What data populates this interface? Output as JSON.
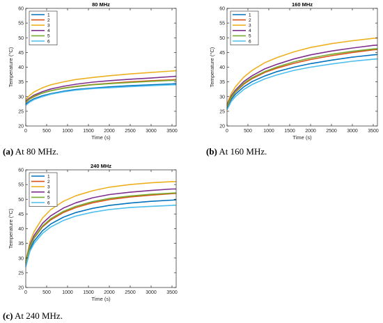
{
  "figure": {
    "captions": [
      {
        "label": "(a)",
        "text": " At 80 MHz."
      },
      {
        "label": "(b)",
        "text": " At 160 MHz."
      },
      {
        "label": "(c)",
        "text": " At 240 MHz."
      }
    ]
  },
  "colors": {
    "series": [
      "#0072BD",
      "#D95319",
      "#EDB120",
      "#7E2F8E",
      "#77AC30",
      "#4DBEEE"
    ],
    "axis": "#262626"
  },
  "chart_data": [
    {
      "type": "line",
      "title": "80 MHz",
      "xlabel": "Time (s)",
      "ylabel": "Temperature (°C)",
      "xlim": [
        0,
        3600
      ],
      "ylim": [
        20,
        60
      ],
      "xticks": [
        0,
        500,
        1000,
        1500,
        2000,
        2500,
        3000,
        3500
      ],
      "yticks": [
        20,
        25,
        30,
        35,
        40,
        45,
        50,
        55,
        60
      ],
      "legend_position": "top-left",
      "grid": false,
      "x": [
        0,
        100,
        200,
        400,
        600,
        900,
        1200,
        1600,
        2000,
        2500,
        3000,
        3500,
        3600
      ],
      "series": [
        {
          "name": "1",
          "values": [
            27.5,
            28.5,
            29.3,
            30.3,
            31.0,
            31.8,
            32.4,
            32.9,
            33.3,
            33.7,
            34.0,
            34.3,
            34.4
          ]
        },
        {
          "name": "2",
          "values": [
            28.0,
            29.2,
            30.0,
            31.2,
            32.0,
            32.9,
            33.5,
            34.1,
            34.5,
            35.0,
            35.4,
            35.7,
            35.8
          ]
        },
        {
          "name": "3",
          "values": [
            29.0,
            30.5,
            31.6,
            33.0,
            34.0,
            35.0,
            35.8,
            36.5,
            37.1,
            37.7,
            38.2,
            38.7,
            38.8
          ]
        },
        {
          "name": "4",
          "values": [
            28.5,
            29.6,
            30.5,
            31.7,
            32.6,
            33.5,
            34.2,
            34.9,
            35.4,
            35.9,
            36.3,
            36.8,
            36.9
          ]
        },
        {
          "name": "5",
          "values": [
            28.2,
            29.3,
            30.2,
            31.2,
            32.0,
            32.8,
            33.4,
            34.0,
            34.4,
            34.8,
            35.2,
            35.5,
            35.6
          ]
        },
        {
          "name": "6",
          "values": [
            27.0,
            28.2,
            29.0,
            30.0,
            30.8,
            31.6,
            32.2,
            32.7,
            33.0,
            33.4,
            33.7,
            34.0,
            34.0
          ]
        }
      ]
    },
    {
      "type": "line",
      "title": "160 MHz",
      "xlabel": "Time (s)",
      "ylabel": "Temperature (°C)",
      "xlim": [
        0,
        3600
      ],
      "ylim": [
        20,
        60
      ],
      "xticks": [
        0,
        500,
        1000,
        1500,
        2000,
        2500,
        3000,
        3500
      ],
      "yticks": [
        20,
        25,
        30,
        35,
        40,
        45,
        50,
        55,
        60
      ],
      "legend_position": "top-left",
      "grid": false,
      "x": [
        0,
        100,
        200,
        400,
        600,
        900,
        1200,
        1600,
        2000,
        2500,
        3000,
        3500,
        3600
      ],
      "series": [
        {
          "name": "1",
          "values": [
            26.0,
            29.0,
            30.8,
            33.3,
            35.1,
            37.0,
            38.5,
            40.0,
            41.2,
            42.4,
            43.4,
            44.2,
            44.3
          ]
        },
        {
          "name": "2",
          "values": [
            26.5,
            29.6,
            31.5,
            34.2,
            36.1,
            38.2,
            39.7,
            41.3,
            42.6,
            43.9,
            45.0,
            45.9,
            46.0
          ]
        },
        {
          "name": "3",
          "values": [
            27.5,
            31.0,
            33.3,
            36.6,
            38.9,
            41.5,
            43.3,
            45.2,
            46.7,
            48.0,
            49.0,
            49.8,
            49.9
          ]
        },
        {
          "name": "4",
          "values": [
            27.0,
            30.2,
            32.2,
            35.1,
            37.1,
            39.4,
            41.0,
            42.8,
            44.2,
            45.5,
            46.5,
            47.4,
            47.5
          ]
        },
        {
          "name": "5",
          "values": [
            26.7,
            29.8,
            31.7,
            34.5,
            36.4,
            38.5,
            40.1,
            41.8,
            43.1,
            44.4,
            45.4,
            46.2,
            46.3
          ]
        },
        {
          "name": "6",
          "values": [
            25.5,
            28.3,
            30.0,
            32.4,
            34.1,
            36.0,
            37.4,
            38.9,
            40.0,
            41.1,
            42.0,
            42.7,
            42.8
          ]
        }
      ]
    },
    {
      "type": "line",
      "title": "240 MHz",
      "xlabel": "Time (s)",
      "ylabel": "Temperature (°C)",
      "xlim": [
        0,
        3600
      ],
      "ylim": [
        20,
        60
      ],
      "xticks": [
        0,
        500,
        1000,
        1500,
        2000,
        2500,
        3000,
        3500
      ],
      "yticks": [
        20,
        25,
        30,
        35,
        40,
        45,
        50,
        55,
        60
      ],
      "legend_position": "top-left",
      "grid": false,
      "x": [
        0,
        100,
        200,
        400,
        600,
        900,
        1200,
        1600,
        2000,
        2500,
        3000,
        3500,
        3600
      ],
      "series": [
        {
          "name": "1",
          "values": [
            27.5,
            33.0,
            35.8,
            39.3,
            41.6,
            43.9,
            45.5,
            46.9,
            47.9,
            48.7,
            49.3,
            49.7,
            49.8
          ]
        },
        {
          "name": "2",
          "values": [
            28.0,
            33.8,
            36.8,
            40.6,
            43.0,
            45.5,
            47.2,
            48.8,
            49.9,
            50.8,
            51.4,
            51.9,
            52.0
          ]
        },
        {
          "name": "3",
          "values": [
            29.0,
            35.5,
            39.0,
            43.6,
            46.5,
            49.3,
            51.2,
            52.9,
            54.1,
            55.0,
            55.6,
            56.0,
            56.0
          ]
        },
        {
          "name": "4",
          "values": [
            28.5,
            34.5,
            37.7,
            41.8,
            44.4,
            47.0,
            48.8,
            50.5,
            51.6,
            52.4,
            53.0,
            53.5,
            53.5
          ]
        },
        {
          "name": "5",
          "values": [
            28.2,
            34.0,
            37.0,
            40.9,
            43.4,
            45.9,
            47.6,
            49.2,
            50.3,
            51.1,
            51.7,
            52.1,
            52.2
          ]
        },
        {
          "name": "6",
          "values": [
            27.0,
            32.3,
            35.0,
            38.4,
            40.6,
            42.8,
            44.3,
            45.6,
            46.5,
            47.2,
            47.6,
            47.9,
            48.0
          ]
        }
      ]
    }
  ]
}
